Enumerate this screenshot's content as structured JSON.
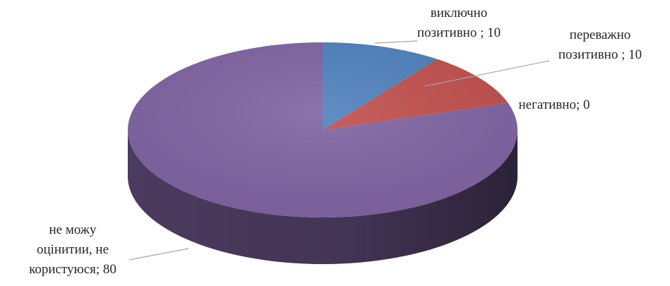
{
  "chart_data": {
    "type": "pie",
    "style": "3d",
    "title": "",
    "slices": [
      {
        "label_lines": [
          "виключно",
          "позитивно ; 10"
        ],
        "value": 10,
        "color": "#4f81bd"
      },
      {
        "label_lines": [
          "переважно",
          "позитивно ; 10"
        ],
        "value": 10,
        "color": "#c0504d"
      },
      {
        "label_lines": [
          "негативно; 0"
        ],
        "value": 0,
        "color": "#9bbb59"
      },
      {
        "label_lines": [
          "не можу",
          "оцінитии, не",
          "користуюся; 80"
        ],
        "value": 80,
        "color": "#8064a2"
      }
    ],
    "legend": "none",
    "start_angle": "top, clockwise"
  }
}
